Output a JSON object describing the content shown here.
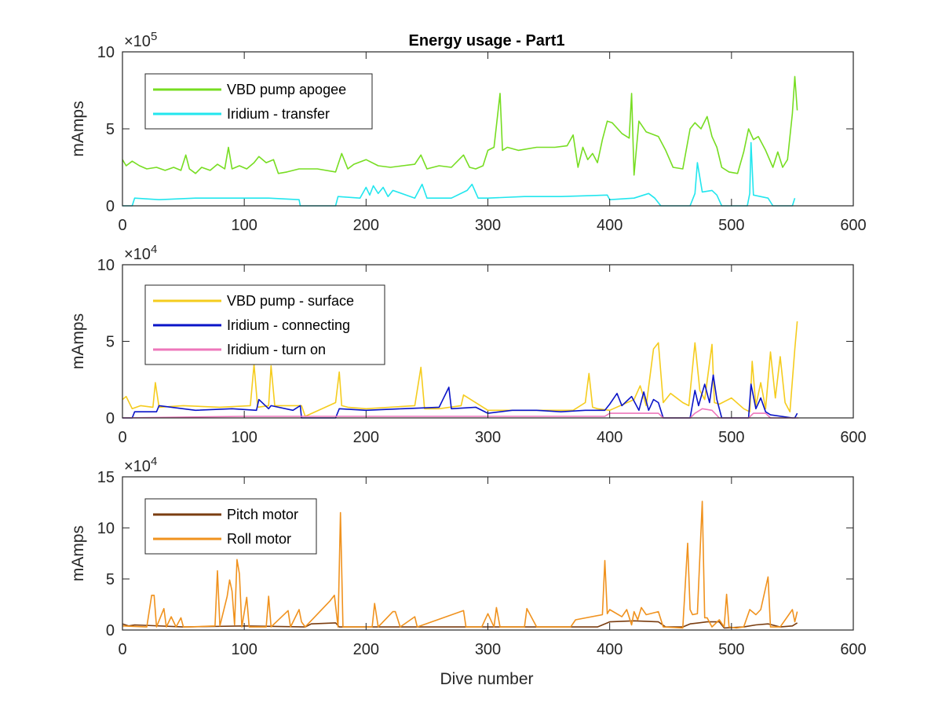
{
  "figure": {
    "title": "Energy usage - Part1",
    "xlabel": "Dive number"
  },
  "chart_data": [
    {
      "type": "line",
      "title": "Energy usage - Part1",
      "xlabel": "",
      "ylabel": "mAmps",
      "xlim": [
        0,
        600
      ],
      "ylim": [
        0,
        10
      ],
      "y_multiplier": "×10^5",
      "exponent_base": "×10",
      "exponent_power": "5",
      "xticks": [
        "0",
        "100",
        "200",
        "300",
        "400",
        "500",
        "600"
      ],
      "yticks": [
        "0",
        "5",
        "10"
      ],
      "ytick_values": [
        0,
        5,
        10
      ],
      "grid": false,
      "legend_position": "top-left",
      "series": [
        {
          "name": "VBD pump apogee",
          "color": "#77dd22",
          "x": [
            0,
            3,
            8,
            14,
            20,
            28,
            35,
            42,
            48,
            52,
            55,
            60,
            65,
            72,
            78,
            84,
            87,
            90,
            96,
            102,
            108,
            112,
            118,
            124,
            128,
            135,
            145,
            160,
            175,
            180,
            185,
            190,
            200,
            210,
            220,
            230,
            240,
            245,
            250,
            260,
            270,
            280,
            285,
            290,
            296,
            300,
            305,
            310,
            312,
            316,
            325,
            340,
            355,
            365,
            370,
            374,
            378,
            382,
            386,
            390,
            394,
            398,
            402,
            410,
            416,
            418,
            420,
            424,
            430,
            440,
            446,
            452,
            460,
            466,
            470,
            475,
            480,
            484,
            488,
            492,
            498,
            505,
            510,
            514,
            518,
            522,
            528,
            534,
            538,
            542,
            546,
            550,
            552,
            554
          ],
          "values": [
            3.0,
            2.6,
            2.9,
            2.6,
            2.4,
            2.5,
            2.3,
            2.5,
            2.3,
            3.3,
            2.4,
            2.1,
            2.5,
            2.3,
            2.7,
            2.4,
            3.8,
            2.4,
            2.6,
            2.4,
            2.8,
            3.2,
            2.8,
            3.0,
            2.1,
            2.2,
            2.4,
            2.4,
            2.2,
            3.4,
            2.4,
            2.7,
            3.0,
            2.6,
            2.5,
            2.6,
            2.7,
            3.3,
            2.4,
            2.6,
            2.5,
            3.3,
            2.5,
            2.4,
            2.6,
            3.6,
            3.8,
            7.3,
            3.6,
            3.8,
            3.6,
            3.8,
            3.8,
            3.9,
            4.6,
            2.5,
            3.8,
            3.0,
            3.4,
            2.8,
            4.3,
            5.5,
            5.4,
            4.7,
            4.4,
            7.3,
            2.0,
            5.5,
            4.8,
            4.5,
            3.6,
            2.5,
            2.4,
            5.0,
            5.4,
            5.0,
            5.8,
            4.5,
            3.8,
            2.5,
            2.2,
            2.1,
            3.5,
            5.0,
            4.3,
            4.5,
            3.6,
            2.5,
            3.5,
            2.5,
            3.0,
            6.0,
            8.4,
            6.2
          ]
        },
        {
          "name": "Iridium - transfer",
          "color": "#22e6ee",
          "x": [
            0,
            8,
            10,
            30,
            60,
            90,
            120,
            145,
            146,
            175,
            177,
            195,
            200,
            203,
            206,
            210,
            214,
            218,
            222,
            240,
            246,
            250,
            270,
            283,
            287,
            292,
            300,
            330,
            360,
            398,
            400,
            420,
            432,
            437,
            442,
            444,
            466,
            470,
            472,
            476,
            484,
            488,
            492,
            513,
            515,
            516,
            518,
            530,
            534,
            550,
            552
          ],
          "values": [
            0.0,
            0.0,
            0.5,
            0.4,
            0.5,
            0.5,
            0.5,
            0.4,
            0.0,
            0.0,
            0.6,
            0.5,
            1.2,
            0.7,
            1.3,
            0.8,
            1.2,
            0.6,
            1.0,
            0.5,
            1.4,
            0.5,
            0.5,
            1.0,
            1.4,
            0.5,
            0.5,
            0.6,
            0.6,
            0.7,
            0.4,
            0.5,
            0.8,
            0.5,
            0.0,
            0.0,
            0.0,
            0.8,
            2.8,
            0.9,
            1.0,
            0.7,
            0.0,
            0.0,
            0.8,
            4.1,
            0.7,
            0.5,
            0.0,
            0.0,
            0.5
          ]
        }
      ]
    },
    {
      "type": "line",
      "xlabel": "",
      "ylabel": "mAmps",
      "xlim": [
        0,
        600
      ],
      "ylim": [
        0,
        10
      ],
      "y_multiplier": "×10^4",
      "exponent_base": "×10",
      "exponent_power": "4",
      "xticks": [
        "0",
        "100",
        "200",
        "300",
        "400",
        "500",
        "600"
      ],
      "yticks": [
        "0",
        "5",
        "10"
      ],
      "ytick_values": [
        0,
        5,
        10
      ],
      "grid": false,
      "legend_position": "top-left",
      "series": [
        {
          "name": "VBD pump - surface",
          "color": "#f5cc1e",
          "x": [
            0,
            3,
            8,
            15,
            25,
            27,
            30,
            50,
            80,
            105,
            108,
            111,
            120,
            122,
            125,
            140,
            147,
            150,
            175,
            178,
            180,
            185,
            200,
            240,
            245,
            248,
            260,
            278,
            280,
            300,
            340,
            370,
            380,
            383,
            386,
            390,
            400,
            420,
            425,
            430,
            436,
            440,
            444,
            450,
            460,
            465,
            470,
            474,
            478,
            484,
            486,
            490,
            500,
            510,
            515,
            517,
            520,
            524,
            528,
            532,
            536,
            540,
            544,
            548,
            552,
            554
          ],
          "values": [
            1.2,
            1.4,
            0.6,
            0.8,
            0.7,
            2.3,
            0.7,
            0.8,
            0.7,
            0.8,
            3.5,
            0.7,
            0.8,
            3.4,
            0.8,
            0.8,
            0.8,
            0.1,
            1.0,
            3.0,
            0.8,
            0.7,
            0.6,
            0.8,
            3.3,
            0.6,
            0.6,
            0.8,
            1.5,
            0.5,
            0.5,
            0.5,
            1.0,
            2.9,
            0.7,
            0.6,
            0.5,
            1.2,
            2.1,
            0.8,
            4.5,
            4.9,
            1.0,
            1.6,
            1.0,
            0.8,
            4.9,
            1.8,
            1.2,
            4.8,
            1.0,
            0.9,
            1.3,
            0.6,
            0.4,
            3.7,
            0.8,
            2.3,
            0.6,
            4.3,
            1.3,
            4.0,
            1.0,
            0.4,
            4.5,
            6.3
          ]
        },
        {
          "name": "Iridium - connecting",
          "color": "#0a14c8",
          "x": [
            0,
            8,
            10,
            28,
            30,
            60,
            90,
            110,
            112,
            120,
            122,
            140,
            146,
            147,
            175,
            178,
            200,
            230,
            260,
            268,
            270,
            290,
            300,
            320,
            340,
            360,
            380,
            396,
            400,
            406,
            410,
            418,
            424,
            428,
            432,
            436,
            440,
            444,
            466,
            470,
            473,
            478,
            482,
            485,
            488,
            492,
            514,
            516,
            520,
            524,
            528,
            532,
            550,
            552,
            554
          ],
          "values": [
            0.0,
            0.0,
            0.4,
            0.4,
            0.8,
            0.5,
            0.6,
            0.5,
            1.2,
            0.6,
            0.8,
            0.5,
            0.8,
            0.0,
            0.0,
            0.6,
            0.5,
            0.6,
            0.7,
            2.0,
            0.6,
            0.7,
            0.3,
            0.5,
            0.5,
            0.4,
            0.5,
            0.5,
            0.9,
            1.6,
            0.8,
            1.4,
            0.5,
            1.7,
            0.5,
            1.2,
            1.0,
            0.0,
            0.0,
            1.8,
            0.8,
            2.2,
            1.0,
            2.8,
            1.2,
            0.0,
            0.0,
            2.2,
            0.6,
            1.3,
            0.4,
            0.2,
            0.0,
            0.0,
            0.3
          ]
        },
        {
          "name": "Iridium - turn on",
          "color": "#ee77bb",
          "x": [
            0,
            100,
            200,
            300,
            396,
            400,
            440,
            444,
            466,
            470,
            476,
            484,
            490,
            514,
            518,
            528,
            532,
            555
          ],
          "values": [
            0.0,
            0.1,
            0.1,
            0.1,
            0.1,
            0.3,
            0.3,
            0.0,
            0.0,
            0.3,
            0.6,
            0.5,
            0.0,
            0.0,
            0.3,
            0.3,
            0.0,
            0.0
          ]
        }
      ]
    },
    {
      "type": "line",
      "xlabel": "Dive number",
      "ylabel": "mAmps",
      "xlim": [
        0,
        600
      ],
      "ylim": [
        0,
        15
      ],
      "y_multiplier": "×10^4",
      "exponent_base": "×10",
      "exponent_power": "4",
      "xticks": [
        "0",
        "100",
        "200",
        "300",
        "400",
        "500",
        "600"
      ],
      "yticks": [
        "0",
        "5",
        "10",
        "15"
      ],
      "ytick_values": [
        0,
        5,
        10,
        15
      ],
      "grid": false,
      "legend_position": "top-left",
      "series": [
        {
          "name": "Pitch motor",
          "color": "#7a3d10",
          "x": [
            0,
            5,
            10,
            50,
            100,
            150,
            155,
            175,
            178,
            200,
            250,
            300,
            350,
            390,
            396,
            400,
            420,
            440,
            446,
            460,
            466,
            480,
            490,
            494,
            510,
            520,
            530,
            540,
            550,
            554
          ],
          "values": [
            0.6,
            0.4,
            0.5,
            0.3,
            0.4,
            0.3,
            0.6,
            0.7,
            0.3,
            0.3,
            0.3,
            0.3,
            0.3,
            0.3,
            0.6,
            0.8,
            0.9,
            0.8,
            0.3,
            0.3,
            0.6,
            0.8,
            0.8,
            0.2,
            0.3,
            0.5,
            0.6,
            0.3,
            0.4,
            0.7
          ]
        },
        {
          "name": "Roll motor",
          "color": "#f0921e",
          "x": [
            0,
            20,
            24,
            26,
            28,
            34,
            36,
            40,
            44,
            48,
            50,
            54,
            76,
            78,
            80,
            86,
            88,
            90,
            92,
            94,
            96,
            98,
            102,
            104,
            118,
            120,
            122,
            136,
            138,
            145,
            147,
            150,
            170,
            174,
            177,
            179,
            181,
            184,
            205,
            207,
            210,
            222,
            224,
            228,
            240,
            242,
            280,
            282,
            295,
            300,
            305,
            307,
            310,
            330,
            332,
            340,
            368,
            372,
            394,
            396,
            398,
            400,
            410,
            414,
            418,
            420,
            423,
            426,
            430,
            440,
            444,
            460,
            464,
            466,
            468,
            472,
            476,
            478,
            480,
            484,
            490,
            494,
            496,
            498,
            504,
            510,
            515,
            520,
            524,
            530,
            532,
            534,
            540,
            550,
            552,
            554
          ],
          "values": [
            0.4,
            0.3,
            3.4,
            3.4,
            0.3,
            2.1,
            0.3,
            1.3,
            0.3,
            1.2,
            0.3,
            0.3,
            0.4,
            5.8,
            0.4,
            3.3,
            4.9,
            3.8,
            0.5,
            6.9,
            5.5,
            0.3,
            3.2,
            0.3,
            0.3,
            3.3,
            0.3,
            1.9,
            0.3,
            2.0,
            0.8,
            0.3,
            2.8,
            3.4,
            0.3,
            11.5,
            0.3,
            0.3,
            0.3,
            2.6,
            0.3,
            1.8,
            1.8,
            0.3,
            1.3,
            0.3,
            1.9,
            0.3,
            0.3,
            1.6,
            0.3,
            2.2,
            0.3,
            0.3,
            2.1,
            0.3,
            0.3,
            1.0,
            1.5,
            6.8,
            1.6,
            2.0,
            1.3,
            2.0,
            0.5,
            1.8,
            1.0,
            2.2,
            1.5,
            1.8,
            0.3,
            0.2,
            8.5,
            2.0,
            1.5,
            1.6,
            12.6,
            1.2,
            1.2,
            0.3,
            1.0,
            0.3,
            3.5,
            0.3,
            0.2,
            0.3,
            2.0,
            1.5,
            2.0,
            5.2,
            0.3,
            0.3,
            0.3,
            2.0,
            0.8,
            1.8
          ]
        }
      ]
    }
  ]
}
